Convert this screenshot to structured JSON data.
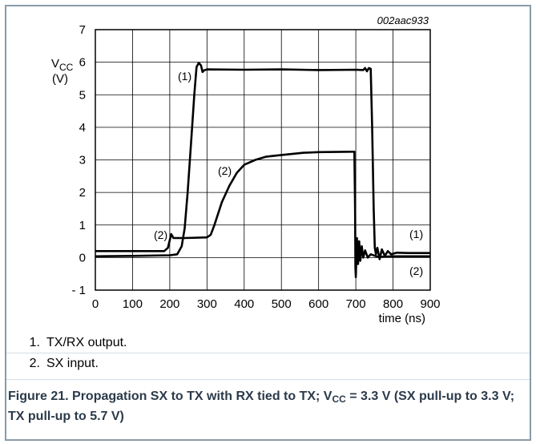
{
  "chart_data": {
    "type": "line",
    "code": "002aac933",
    "ylabel_main": "V",
    "ylabel_sub": "CC",
    "ylabel_unit": "(V)",
    "xlabel": "time (ns)",
    "xlim": [
      0,
      900
    ],
    "ylim": [
      -1,
      7
    ],
    "x_ticks": [
      "0",
      "100",
      "200",
      "300",
      "400",
      "500",
      "600",
      "700",
      "800",
      "900"
    ],
    "y_ticks": [
      "- 1",
      "0",
      "1",
      "2",
      "3",
      "4",
      "5",
      "6",
      "7"
    ],
    "grid": true,
    "series": [
      {
        "name": "(1)",
        "points": [
          [
            0,
            0.04
          ],
          [
            100,
            0.05
          ],
          [
            200,
            0.07
          ],
          [
            220,
            0.1
          ],
          [
            232,
            0.35
          ],
          [
            240,
            0.9
          ],
          [
            248,
            2.0
          ],
          [
            257,
            3.5
          ],
          [
            266,
            5.0
          ],
          [
            272,
            5.85
          ],
          [
            278,
            5.98
          ],
          [
            284,
            5.9
          ],
          [
            288,
            5.7
          ],
          [
            292,
            5.75
          ],
          [
            300,
            5.78
          ],
          [
            400,
            5.77
          ],
          [
            500,
            5.78
          ],
          [
            600,
            5.76
          ],
          [
            700,
            5.77
          ],
          [
            720,
            5.76
          ],
          [
            725,
            5.82
          ],
          [
            730,
            5.72
          ],
          [
            735,
            5.82
          ],
          [
            740,
            5.8
          ],
          [
            744,
            4.0
          ],
          [
            748,
            1.5
          ],
          [
            751,
            0.3
          ],
          [
            754,
            0.1
          ],
          [
            758,
            0.3
          ],
          [
            764,
            -0.05
          ],
          [
            770,
            0.25
          ],
          [
            778,
            0.05
          ],
          [
            786,
            0.2
          ],
          [
            795,
            0.1
          ],
          [
            810,
            0.15
          ],
          [
            840,
            0.14
          ],
          [
            870,
            0.14
          ],
          [
            900,
            0.14
          ]
        ]
      },
      {
        "name": "(2)",
        "points": [
          [
            0,
            0.2
          ],
          [
            100,
            0.2
          ],
          [
            185,
            0.2
          ],
          [
            195,
            0.3
          ],
          [
            204,
            0.72
          ],
          [
            210,
            0.6
          ],
          [
            218,
            0.6
          ],
          [
            240,
            0.6
          ],
          [
            300,
            0.62
          ],
          [
            310,
            0.7
          ],
          [
            320,
            1.0
          ],
          [
            340,
            1.7
          ],
          [
            360,
            2.2
          ],
          [
            380,
            2.6
          ],
          [
            400,
            2.85
          ],
          [
            430,
            3.0
          ],
          [
            460,
            3.1
          ],
          [
            500,
            3.15
          ],
          [
            560,
            3.22
          ],
          [
            600,
            3.24
          ],
          [
            690,
            3.25
          ],
          [
            696,
            3.25
          ],
          [
            698,
            1.5
          ],
          [
            699,
            -0.3
          ],
          [
            700,
            -0.6
          ],
          [
            703,
            0.6
          ],
          [
            706,
            -0.2
          ],
          [
            709,
            0.5
          ],
          [
            712,
            -0.1
          ],
          [
            716,
            0.35
          ],
          [
            720,
            0.0
          ],
          [
            725,
            0.22
          ],
          [
            732,
            0.0
          ],
          [
            740,
            0.1
          ],
          [
            760,
            0.02
          ],
          [
            800,
            0.04
          ],
          [
            900,
            0.04
          ]
        ]
      }
    ]
  },
  "notes": [
    {
      "num": "1.",
      "text": "TX/RX output."
    },
    {
      "num": "2.",
      "text": "SX input."
    }
  ],
  "caption": {
    "part1": "Figure 21.  Propagation SX to TX with RX tied to TX; V",
    "sub": "CC",
    "part2": " = 3.3 V (SX pull-up to 3.3 V; TX pull-up to 5.7 V)"
  }
}
